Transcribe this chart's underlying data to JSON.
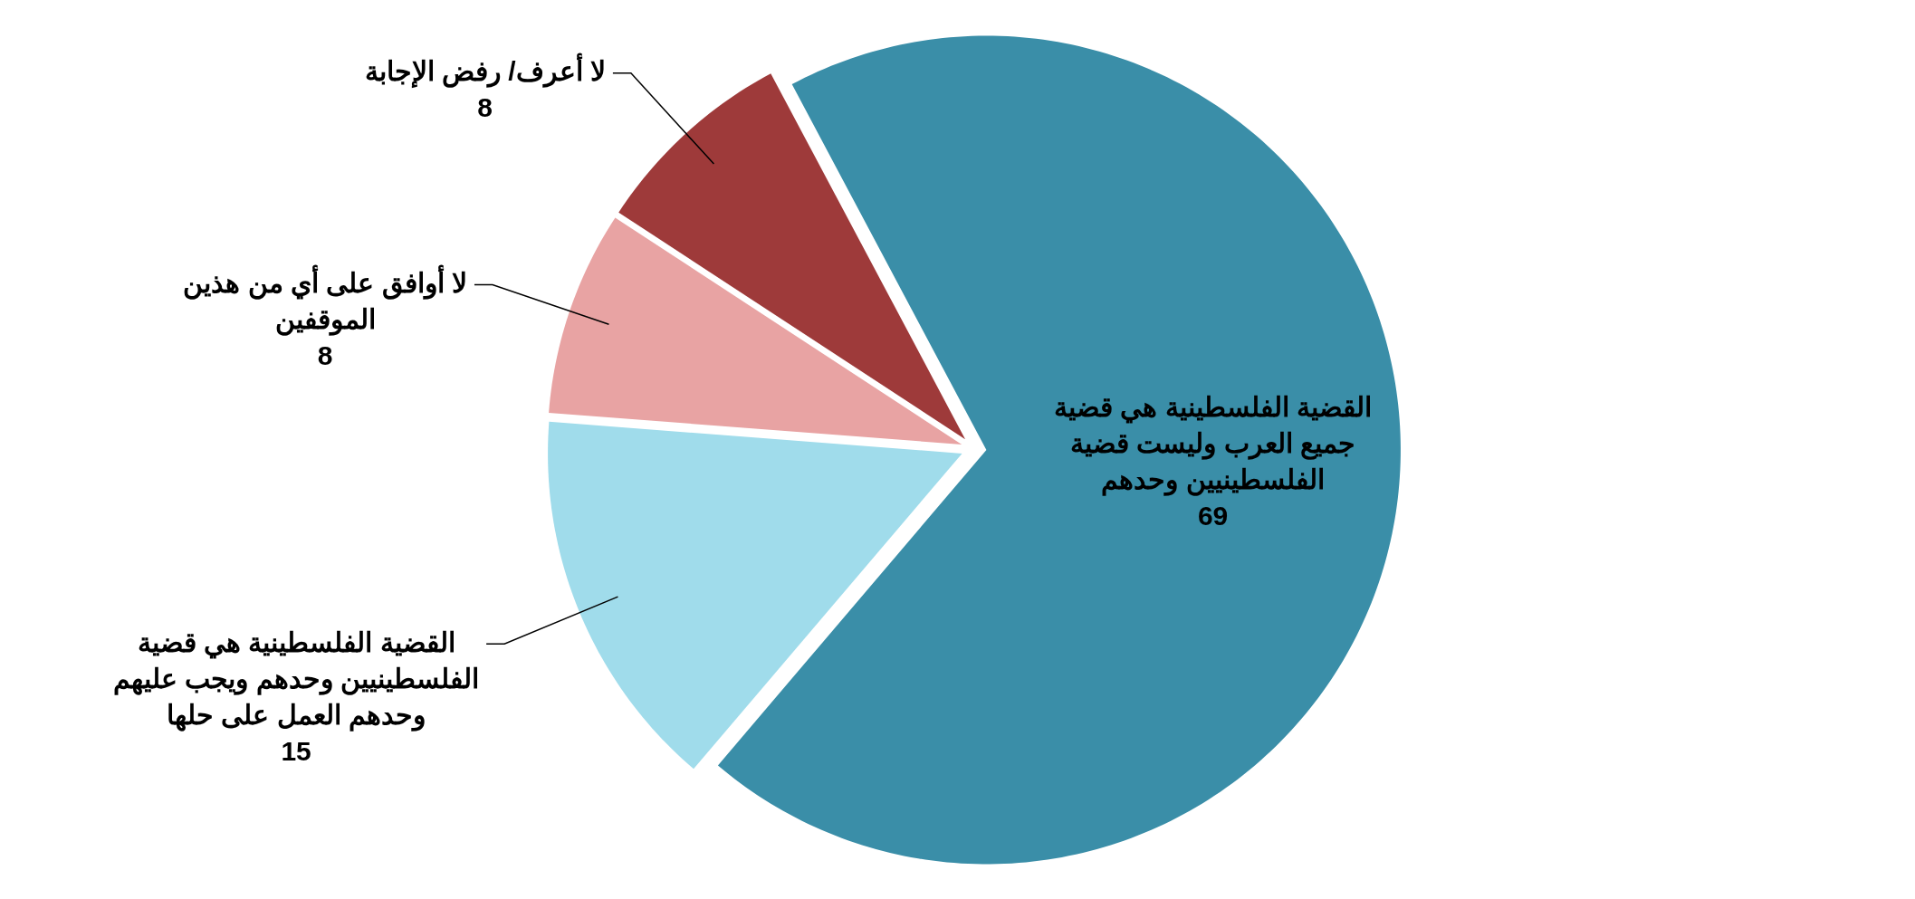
{
  "chart_data": {
    "type": "pie",
    "categories": [
      "القضية الفلسطينية هي قضية جميع العرب وليست قضية الفلسطينيين وحدهم",
      "القضية الفلسطينية هي قضية الفلسطينيين وحدهم ويجب عليهم وحدهم العمل على حلها",
      "لا أوافق على أي من هذين الموقفين",
      "لا أعرف/ رفض الإجابة"
    ],
    "values": [
      69,
      15,
      8,
      8
    ],
    "colors": [
      "#3a8ea8",
      "#a0dceb",
      "#e8a3a3",
      "#9e3a3a"
    ],
    "data_labels": true,
    "legend": false
  }
}
